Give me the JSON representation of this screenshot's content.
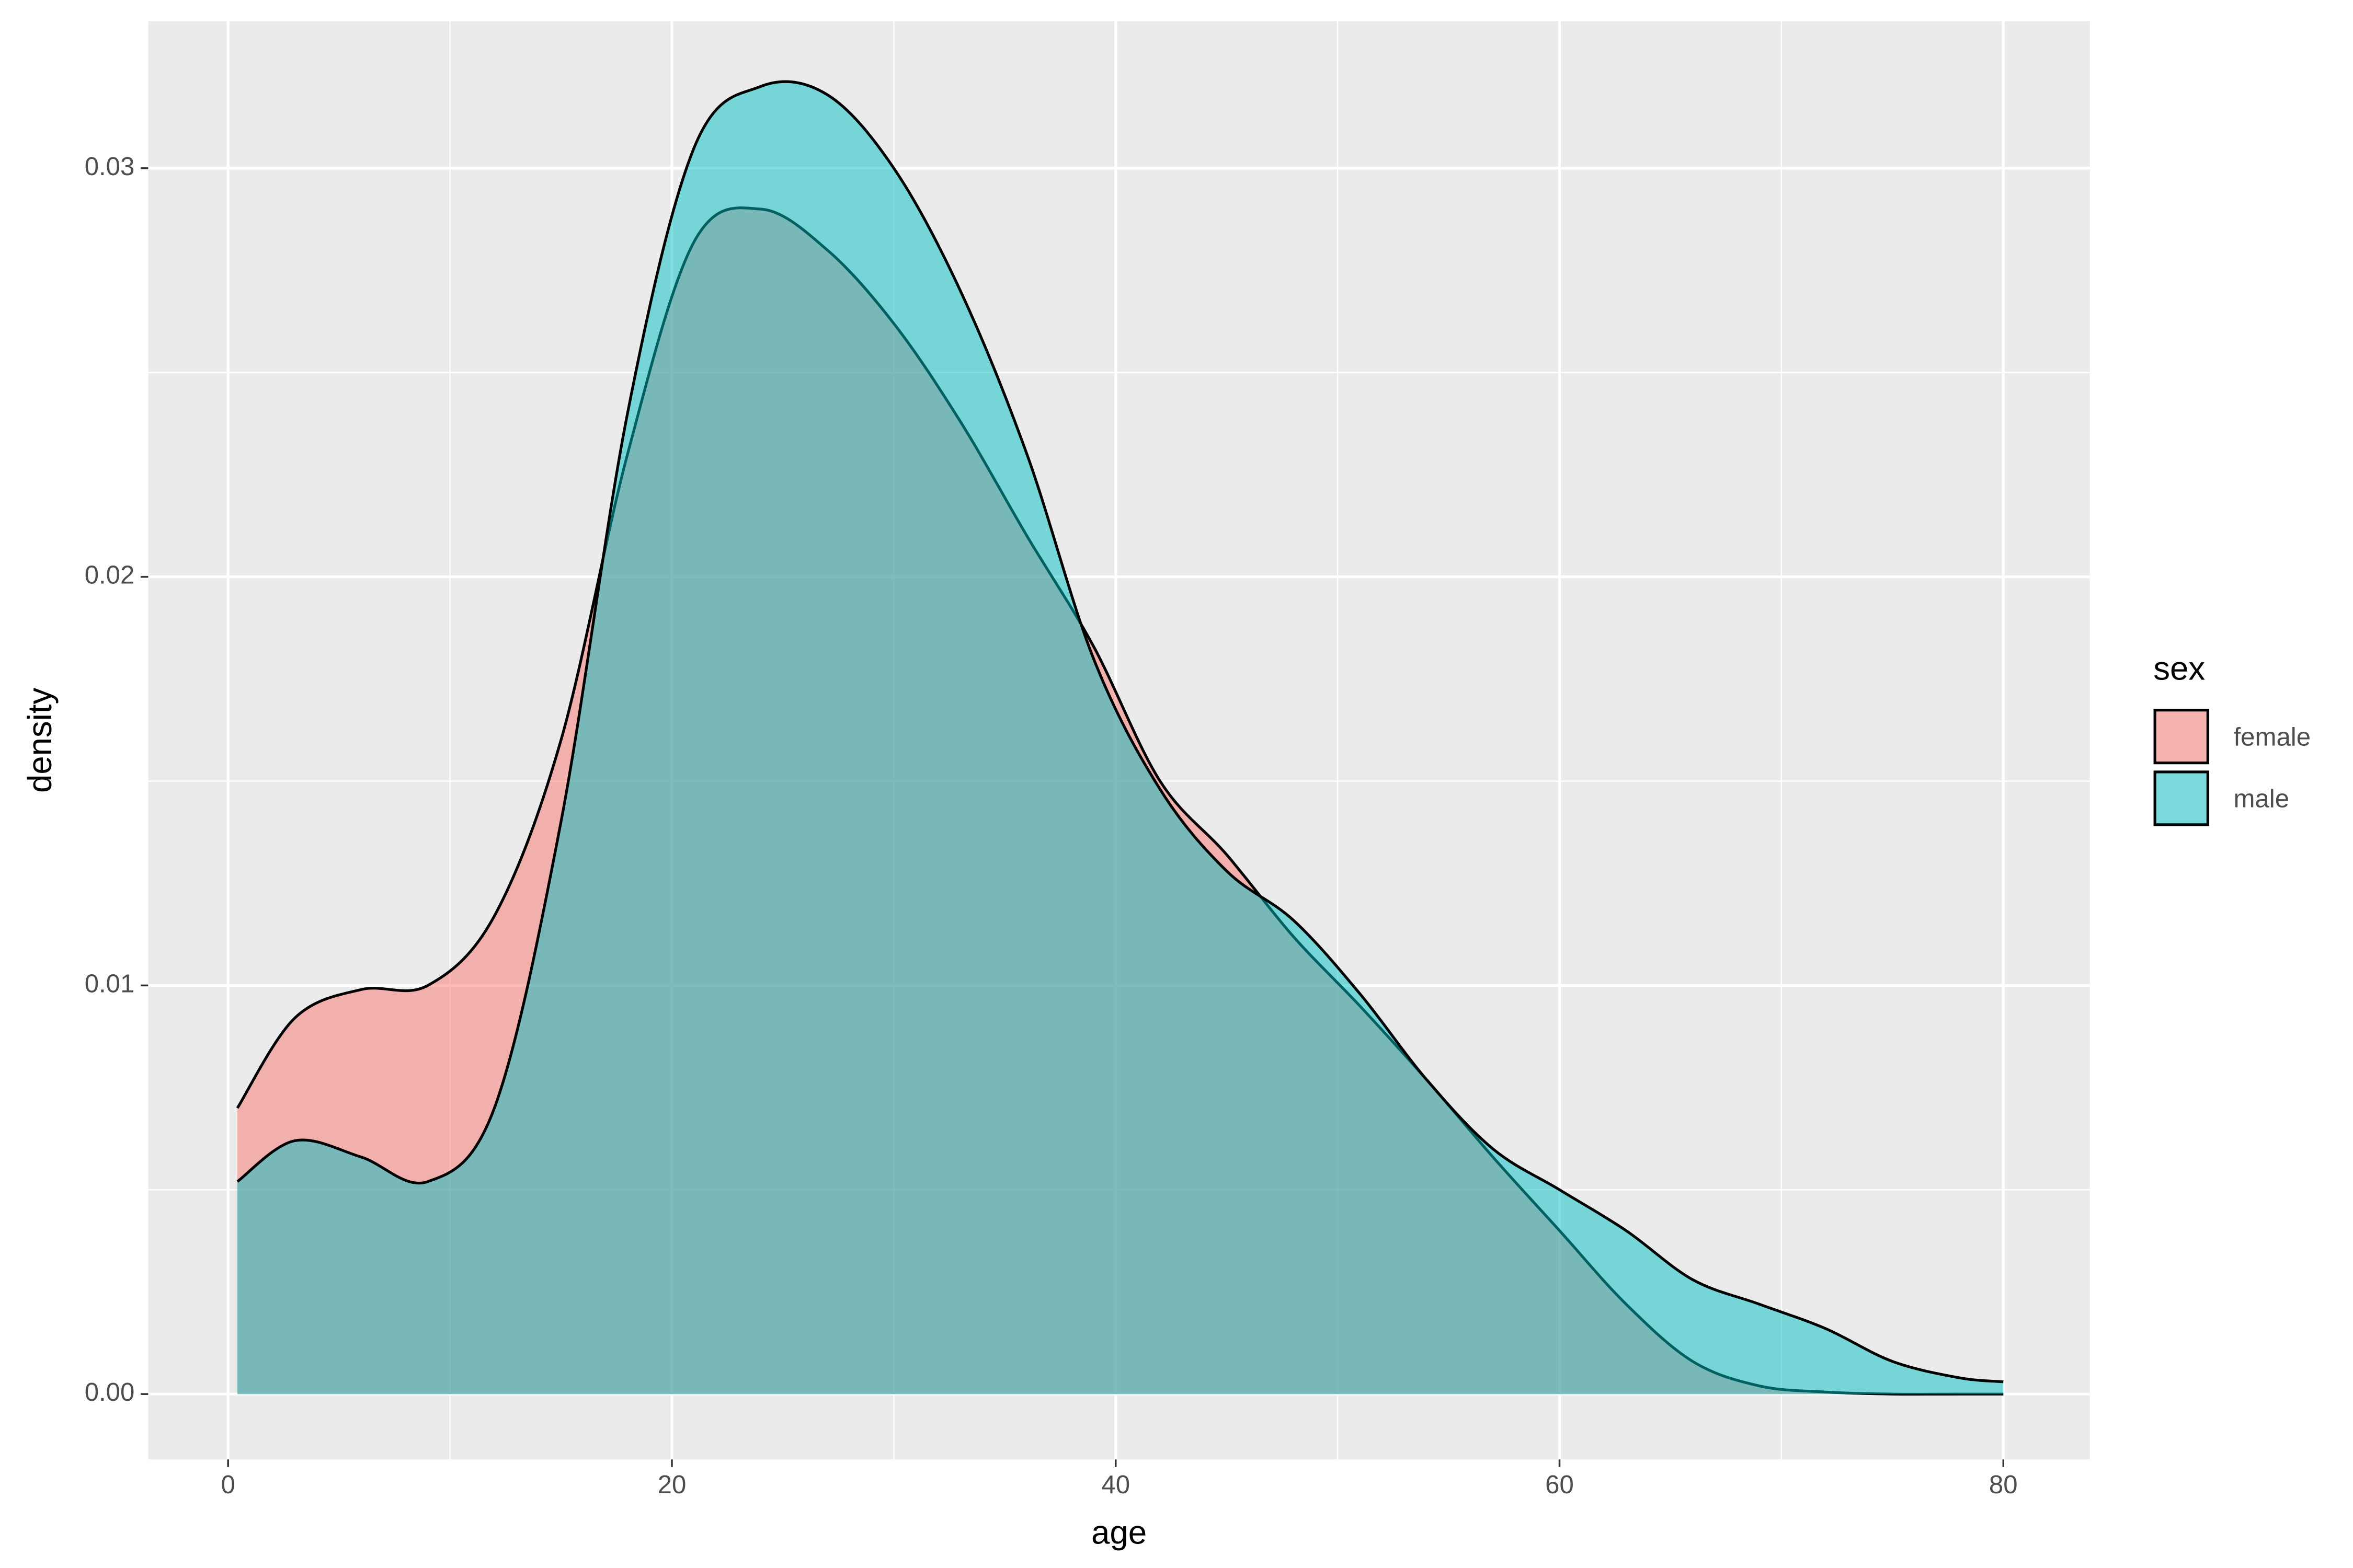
{
  "chart_data": {
    "type": "density",
    "x_label": "age",
    "y_label": "density",
    "legend_title": "sex",
    "legend_position": "right",
    "grid": true,
    "background": "#ebebeb",
    "fill_opacity": 0.5,
    "x": [
      0.42,
      3,
      6,
      9,
      12,
      15,
      18,
      21,
      24,
      27,
      30,
      33,
      36,
      39,
      42,
      45,
      48,
      51,
      54,
      57,
      60,
      63,
      66,
      69,
      72,
      75,
      78,
      80
    ],
    "series": [
      {
        "name": "female",
        "color": "#F8766D",
        "values": [
          0.007,
          0.0092,
          0.0099,
          0.01,
          0.0117,
          0.016,
          0.023,
          0.0282,
          0.029,
          0.028,
          0.0262,
          0.0238,
          0.021,
          0.0183,
          0.015,
          0.0132,
          0.0112,
          0.0095,
          0.0077,
          0.0058,
          0.004,
          0.0022,
          0.0008,
          0.0002,
          5e-05,
          0.0,
          0.0,
          0.0
        ]
      },
      {
        "name": "male",
        "color": "#00BFC4",
        "values": [
          0.0052,
          0.0062,
          0.0058,
          0.0052,
          0.007,
          0.014,
          0.024,
          0.0305,
          0.032,
          0.0318,
          0.03,
          0.027,
          0.023,
          0.018,
          0.0148,
          0.0128,
          0.0116,
          0.0098,
          0.0077,
          0.006,
          0.005,
          0.004,
          0.0028,
          0.0022,
          0.0016,
          0.0008,
          0.0004,
          0.0003
        ]
      }
    ],
    "xlim": [
      -3.6,
      83.9
    ],
    "ylim": [
      -0.0016,
      0.0336
    ],
    "xticks": [
      0,
      20,
      40,
      60,
      80
    ],
    "yticks": [
      {
        "value": 0,
        "label": "0.00"
      },
      0.01,
      0.02,
      0.03
    ]
  }
}
